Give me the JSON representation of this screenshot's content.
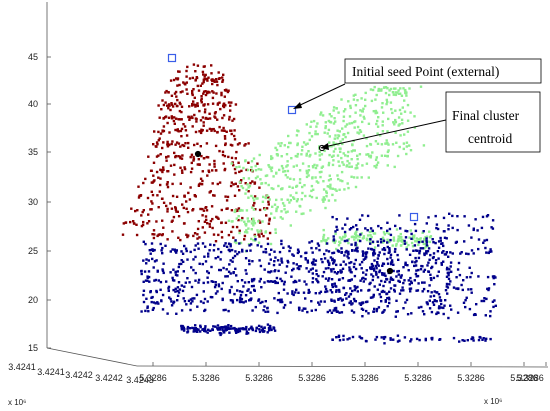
{
  "chart_data": {
    "type": "scatter",
    "z_ticks": [
      "15",
      "20",
      "25",
      "30",
      "35",
      "40",
      "45"
    ],
    "x_ticks": [
      "5.3286",
      "5.3286",
      "5.3286",
      "5.3286",
      "5.3286",
      "5.3286",
      "5.3286",
      "5.3286",
      "5.3286"
    ],
    "y_ticks": [
      "3.4241",
      "3.4241",
      "3.4242",
      "3.4242",
      "3.4243"
    ],
    "x_exponent": "x 10⁶",
    "y_exponent": "x 10⁶",
    "annotations": [
      {
        "id": "seed",
        "text": "Initial seed Point (external)"
      },
      {
        "id": "centroid",
        "lines": [
          "Final cluster",
          "centroid"
        ]
      }
    ],
    "series": [
      {
        "color": "#8b0000",
        "approx_points": 600
      },
      {
        "color": "#90ee90",
        "approx_points": 700
      },
      {
        "color": "#00008b",
        "approx_points": 1300
      }
    ],
    "seed_points": {
      "color": "#3a5ee8"
    },
    "centroid_points": {
      "color": "#000000"
    }
  }
}
